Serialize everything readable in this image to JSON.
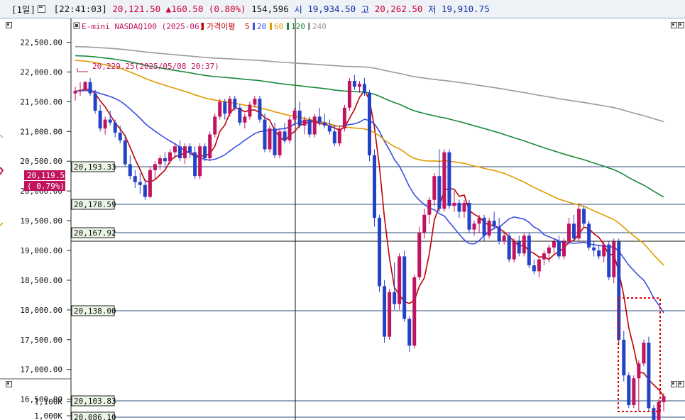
{
  "header": {
    "period": "[1일]",
    "time": "[22:41:03]",
    "price": "20,121.50",
    "change": "▲160.50",
    "change_pct": "(0.80%)",
    "volume": "154,596",
    "open_label": "시",
    "open": "19,934.50",
    "high_label": "고",
    "high": "20,262.50",
    "low_label": "저",
    "low": "19,910.75"
  },
  "legend": {
    "instrument": "E-mini NASDAQ100 (2025-06)",
    "ma_label": "가격이평",
    "ma_periods": [
      "5",
      "20",
      "60",
      "120",
      "240"
    ],
    "ma_colors": [
      "#c00000",
      "#3a4fe0",
      "#e09a00",
      "#1a8a3a",
      "#9a9a9a"
    ]
  },
  "left_panel": {
    "price_box": "20,119.50",
    "pct_box": "( 0.79%)"
  },
  "high_annotation": "20,229.25(2025/05/08 20:37)",
  "horizontal_levels": [
    "20,193.33",
    "20,178.59",
    "20,167.92",
    "20,138.00",
    "20,103.83",
    "20,086.10"
  ],
  "colors": {
    "up": "#c0145f",
    "down": "#2442c8",
    "accent_red": "#cc0033",
    "grid": "#2f4f7f"
  },
  "chart_data": {
    "type": "candlestick",
    "y_tick_labels": [
      "22,500.00",
      "22,000.00",
      "21,500.00",
      "21,000.00",
      "20,500.00",
      "20,000.00",
      "19,500.00",
      "19,000.00",
      "18,500.00",
      "18,000.00",
      "17,500.00",
      "17,000.00",
      "16,500.00"
    ],
    "volume_tick_labels": [
      "1,100K",
      "1,000K"
    ],
    "ylim": [
      16150,
      22900
    ],
    "candles_ohlc": [
      [
        21640,
        21750,
        21520,
        21680
      ],
      [
        21680,
        21830,
        21600,
        21700
      ],
      [
        21700,
        21850,
        21680,
        21830
      ],
      [
        21830,
        21900,
        21600,
        21640
      ],
      [
        21640,
        21700,
        21300,
        21350
      ],
      [
        21350,
        21450,
        21000,
        21050
      ],
      [
        21050,
        21250,
        20950,
        21200
      ],
      [
        21200,
        21350,
        21100,
        21150
      ],
      [
        21150,
        21200,
        20900,
        20980
      ],
      [
        20980,
        21100,
        20800,
        20850
      ],
      [
        20850,
        20950,
        20400,
        20450
      ],
      [
        20450,
        20600,
        20200,
        20250
      ],
      [
        20250,
        20350,
        20050,
        20150
      ],
      [
        20150,
        20300,
        19950,
        20100
      ],
      [
        20100,
        20200,
        19850,
        19900
      ],
      [
        19900,
        20400,
        19880,
        20350
      ],
      [
        20350,
        20500,
        20200,
        20450
      ],
      [
        20450,
        20600,
        20350,
        20550
      ],
      [
        20550,
        20650,
        20400,
        20500
      ],
      [
        20500,
        20700,
        20450,
        20650
      ],
      [
        20650,
        20800,
        20550,
        20750
      ],
      [
        20750,
        20850,
        20500,
        20550
      ],
      [
        20550,
        20800,
        20450,
        20750
      ],
      [
        20750,
        20800,
        20550,
        20650
      ],
      [
        20650,
        20750,
        20200,
        20250
      ],
      [
        20250,
        20800,
        20200,
        20750
      ],
      [
        20750,
        20800,
        20500,
        20550
      ],
      [
        20550,
        21000,
        20500,
        20950
      ],
      [
        20950,
        21300,
        20900,
        21250
      ],
      [
        21250,
        21550,
        21200,
        21500
      ],
      [
        21500,
        21550,
        21200,
        21300
      ],
      [
        21300,
        21600,
        21250,
        21550
      ],
      [
        21550,
        21600,
        21350,
        21400
      ],
      [
        21400,
        21450,
        21100,
        21150
      ],
      [
        21150,
        21300,
        21050,
        21250
      ],
      [
        21250,
        21500,
        21200,
        21450
      ],
      [
        21450,
        21600,
        21400,
        21550
      ],
      [
        21550,
        21600,
        21150,
        21200
      ],
      [
        21200,
        21300,
        20650,
        20700
      ],
      [
        20700,
        21100,
        20650,
        21050
      ],
      [
        21050,
        21150,
        20550,
        20600
      ],
      [
        20600,
        21050,
        20550,
        21000
      ],
      [
        21000,
        21150,
        20800,
        20850
      ],
      [
        20850,
        21250,
        20800,
        21200
      ],
      [
        21200,
        21400,
        21100,
        21350
      ],
      [
        21350,
        21500,
        21050,
        21100
      ],
      [
        21100,
        21250,
        20950,
        21200
      ],
      [
        21200,
        21250,
        20900,
        20950
      ],
      [
        20950,
        21300,
        20900,
        21250
      ],
      [
        21250,
        21400,
        21100,
        21150
      ],
      [
        21150,
        21300,
        21050,
        21100
      ],
      [
        21100,
        21200,
        20950,
        21000
      ],
      [
        21000,
        21100,
        20750,
        20800
      ],
      [
        20800,
        21100,
        20750,
        21050
      ],
      [
        21050,
        21450,
        21000,
        21400
      ],
      [
        21400,
        21900,
        21350,
        21850
      ],
      [
        21850,
        21950,
        21700,
        21750
      ],
      [
        21750,
        21850,
        21650,
        21800
      ],
      [
        21800,
        21900,
        21600,
        21650
      ],
      [
        21650,
        21700,
        20500,
        20600
      ],
      [
        20600,
        20700,
        19400,
        19550
      ],
      [
        19550,
        19600,
        18300,
        18400
      ],
      [
        18400,
        18500,
        17450,
        17550
      ],
      [
        17550,
        18350,
        17500,
        18300
      ],
      [
        18300,
        18800,
        18000,
        18100
      ],
      [
        18100,
        18950,
        18000,
        18900
      ],
      [
        18900,
        19000,
        17800,
        17850
      ],
      [
        17850,
        17900,
        17300,
        17400
      ],
      [
        17400,
        18600,
        17350,
        18550
      ],
      [
        18550,
        19400,
        18500,
        19300
      ],
      [
        19300,
        19700,
        19200,
        19600
      ],
      [
        19600,
        19900,
        19450,
        19850
      ],
      [
        19850,
        20300,
        19750,
        20250
      ],
      [
        20250,
        20700,
        19650,
        19700
      ],
      [
        19700,
        20700,
        19650,
        20650
      ],
      [
        20650,
        20700,
        19700,
        19750
      ],
      [
        19750,
        20000,
        19650,
        19800
      ],
      [
        19800,
        19850,
        19550,
        19650
      ],
      [
        19650,
        19850,
        19550,
        19800
      ],
      [
        19800,
        19850,
        19300,
        19350
      ],
      [
        19350,
        19500,
        19250,
        19450
      ],
      [
        19450,
        19600,
        19300,
        19550
      ],
      [
        19550,
        19600,
        19150,
        19250
      ],
      [
        19250,
        19550,
        19200,
        19500
      ],
      [
        19500,
        19650,
        19350,
        19400
      ],
      [
        19400,
        19550,
        19100,
        19150
      ],
      [
        19150,
        19300,
        19100,
        19250
      ],
      [
        19250,
        19300,
        18800,
        18850
      ],
      [
        18850,
        19200,
        18800,
        19150
      ],
      [
        19150,
        19250,
        18900,
        18950
      ],
      [
        18950,
        19300,
        18900,
        19250
      ],
      [
        19250,
        19300,
        18700,
        18750
      ],
      [
        18750,
        18850,
        18600,
        18650
      ],
      [
        18650,
        18900,
        18550,
        18850
      ],
      [
        18850,
        19000,
        18750,
        18950
      ],
      [
        18950,
        19100,
        18800,
        19050
      ],
      [
        19050,
        19200,
        18950,
        19150
      ],
      [
        19150,
        19250,
        18850,
        18900
      ],
      [
        18900,
        19200,
        18850,
        19150
      ],
      [
        19150,
        19550,
        19100,
        19450
      ],
      [
        19450,
        19600,
        19150,
        19200
      ],
      [
        19200,
        19800,
        19150,
        19700
      ],
      [
        19700,
        19750,
        19400,
        19450
      ],
      [
        19450,
        19500,
        19000,
        19050
      ],
      [
        19050,
        19150,
        18900,
        19000
      ],
      [
        19000,
        19100,
        18850,
        18900
      ],
      [
        18900,
        19150,
        18800,
        19100
      ],
      [
        19100,
        19150,
        18500,
        18550
      ],
      [
        18550,
        19200,
        18450,
        19150
      ],
      [
        19150,
        19200,
        17400,
        17500
      ],
      [
        17500,
        17650,
        16800,
        16900
      ],
      [
        16900,
        16950,
        16350,
        16400
      ],
      [
        16400,
        16900,
        16350,
        16850
      ],
      [
        16850,
        17150,
        16300,
        17100
      ],
      [
        17100,
        17500,
        17050,
        17450
      ],
      [
        17450,
        17550,
        16300,
        16350
      ],
      [
        16350,
        16400,
        15900,
        15950
      ],
      [
        15950,
        16500,
        15900,
        16450
      ],
      [
        16450,
        16600,
        16300,
        16550
      ]
    ]
  }
}
